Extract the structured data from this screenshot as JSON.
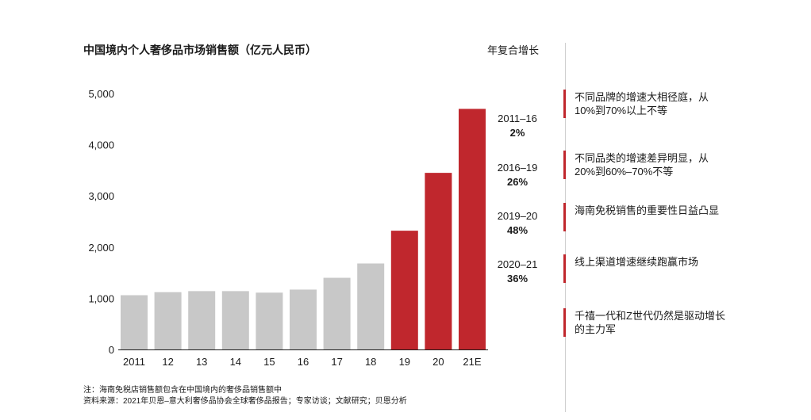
{
  "title": "中国境内个人奢侈品市场销售额（亿元人民币）",
  "cagr_header": "年复合增长",
  "chart_data": {
    "type": "bar",
    "title": "中国境内个人奢侈品市场销售额（亿元人民币）",
    "unit": "亿元人民币",
    "categories": [
      "2011",
      "12",
      "13",
      "14",
      "15",
      "16",
      "17",
      "18",
      "19",
      "20",
      "21E"
    ],
    "values": [
      1060,
      1120,
      1140,
      1140,
      1110,
      1170,
      1400,
      1680,
      2320,
      3450,
      4700
    ],
    "colors": [
      "#c8c8c8",
      "#c8c8c8",
      "#c8c8c8",
      "#c8c8c8",
      "#c8c8c8",
      "#c8c8c8",
      "#c8c8c8",
      "#c8c8c8",
      "#c0272d",
      "#c0272d",
      "#c0272d"
    ],
    "ylim": [
      0,
      5000
    ],
    "yticks": [
      0,
      1000,
      2000,
      3000,
      4000,
      5000
    ],
    "ytick_labels": [
      "0",
      "1,000",
      "2,000",
      "3,000",
      "4,000",
      "5,000"
    ],
    "grid": false
  },
  "growth_rates": [
    {
      "period": "2011–16",
      "value": "2%"
    },
    {
      "period": "2016–19",
      "value": "26%"
    },
    {
      "period": "2019–20",
      "value": "48%"
    },
    {
      "period": "2020–21",
      "value": "36%"
    }
  ],
  "insights": [
    {
      "text": "不同品牌的增速大相径庭，从10%到70%以上不等"
    },
    {
      "text": "不同品类的增速差异明显，从20%到60%–70%不等"
    },
    {
      "text": "海南免税销售的重要性日益凸显"
    },
    {
      "text": "线上渠道增速继续跑赢市场"
    },
    {
      "text": "千禧一代和Z世代仍然是驱动增长的主力军"
    }
  ],
  "footnotes": {
    "note": "注：海南免税店销售额包含在中国境内的奢侈品销售额中",
    "source": "资料来源：2021年贝恩–意大利奢侈品协会全球奢侈品报告；专家访谈；文献研究；贝恩分析"
  },
  "accent_color": "#c0272d",
  "bar_gray": "#c8c8c8"
}
